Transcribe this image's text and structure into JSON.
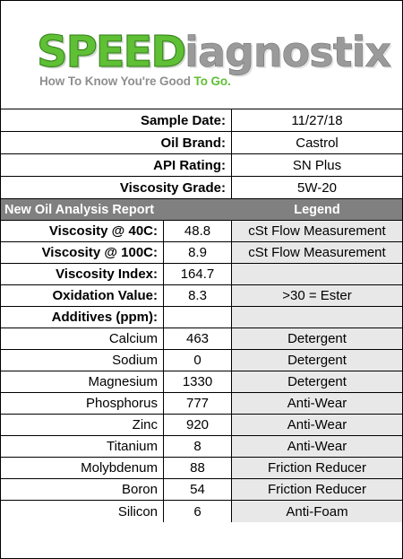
{
  "logo": {
    "speed": "SPEED",
    "diagnostix": "iagnostix",
    "tagline_main": "How To Know You're Good ",
    "tagline_highlight": "To Go.",
    "brand_green": "#5fbf35",
    "brand_gray": "#9a9a9a"
  },
  "sample_info": [
    {
      "label": "Sample Date:",
      "value": "11/27/18"
    },
    {
      "label": "Oil Brand:",
      "value": "Castrol"
    },
    {
      "label": "API Rating:",
      "value": "SN Plus"
    },
    {
      "label": "Viscosity Grade:",
      "value": "5W-20"
    }
  ],
  "report_header": {
    "title": "New Oil Analysis Report",
    "legend": "Legend",
    "bg_color": "#808080"
  },
  "bold_rows": [
    {
      "label": "Viscosity @ 40C:",
      "value": "48.8",
      "legend": "cSt Flow Measurement"
    },
    {
      "label": "Viscosity @ 100C:",
      "value": "8.9",
      "legend": "cSt Flow Measurement"
    },
    {
      "label": "Viscosity Index:",
      "value": "164.7",
      "legend": ""
    },
    {
      "label": "Oxidation Value:",
      "value": "8.3",
      "legend": ">30 = Ester"
    },
    {
      "label": "Additives (ppm):",
      "value": "",
      "legend": ""
    }
  ],
  "additives": [
    {
      "label": "Calcium",
      "value": "463",
      "legend": "Detergent"
    },
    {
      "label": "Sodium",
      "value": "0",
      "legend": "Detergent"
    },
    {
      "label": "Magnesium",
      "value": "1330",
      "legend": "Detergent"
    },
    {
      "label": "Phosphorus",
      "value": "777",
      "legend": "Anti-Wear"
    },
    {
      "label": "Zinc",
      "value": "920",
      "legend": "Anti-Wear"
    },
    {
      "label": "Titanium",
      "value": "8",
      "legend": "Anti-Wear"
    },
    {
      "label": "Molybdenum",
      "value": "88",
      "legend": "Friction Reducer"
    },
    {
      "label": "Boron",
      "value": "54",
      "legend": "Friction Reducer"
    },
    {
      "label": "Silicon",
      "value": "6",
      "legend": "Anti-Foam"
    }
  ]
}
